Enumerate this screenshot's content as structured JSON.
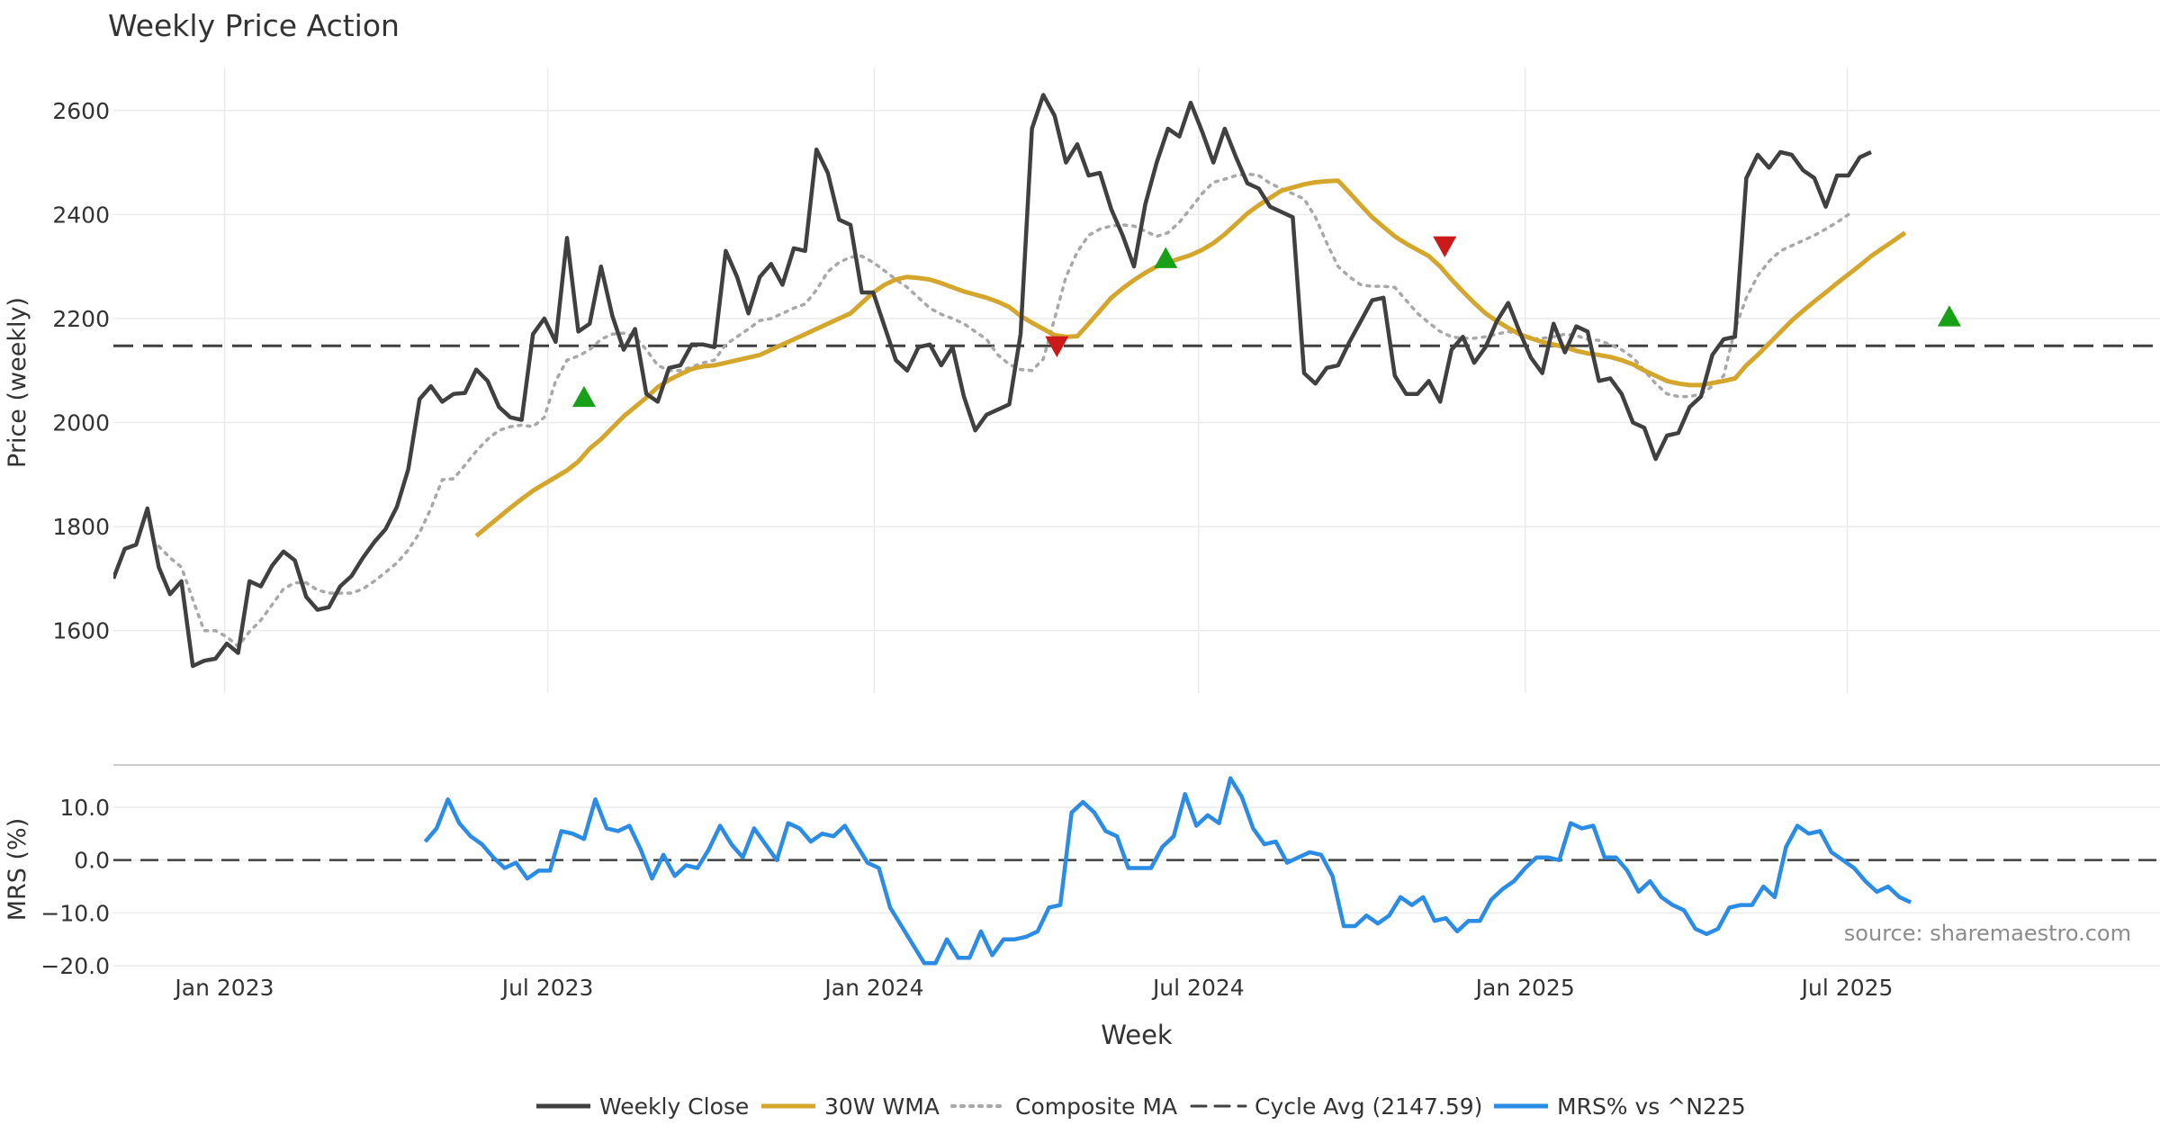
{
  "title": "Weekly Price Action",
  "source": "source: sharemaestro.com",
  "colors": {
    "close": "#404040",
    "wma": "#d4a72c",
    "composite": "#a8a8a8",
    "cycle": "#404040",
    "mrs": "#2b8ce6",
    "bull": "#18a018",
    "bear": "#cc1a1a",
    "grid": "#ebebeb",
    "text": "#333333"
  },
  "chart_data": [
    {
      "type": "line",
      "title": "Weekly Price Action",
      "xlabel": "",
      "ylabel": "Price (weekly)",
      "ylim": [
        1480,
        2700
      ],
      "yticks": [
        1600,
        1800,
        2000,
        2200,
        2400,
        2600
      ],
      "x_range_weeks": [
        0,
        181
      ],
      "date_ticks": [
        {
          "label": "Jan 2023",
          "week": 9.8
        },
        {
          "label": "Jul 2023",
          "week": 38.3
        },
        {
          "label": "Jan 2024",
          "week": 67.1
        },
        {
          "label": "Jul 2024",
          "week": 95.7
        },
        {
          "label": "Jan 2025",
          "week": 124.5
        },
        {
          "label": "Jul 2025",
          "week": 152.9
        }
      ],
      "cycle_avg": 2147.59,
      "series": [
        {
          "name": "Weekly Close",
          "start_week": 0,
          "values": [
            1700,
            1757,
            1765,
            1835,
            1722,
            1670,
            1695,
            1532,
            1542,
            1546,
            1575,
            1557,
            1695,
            1685,
            1725,
            1752,
            1735,
            1665,
            1640,
            1645,
            1685,
            1705,
            1740,
            1770,
            1795,
            1838,
            1910,
            2045,
            2070,
            2040,
            2055,
            2057,
            2102,
            2080,
            2030,
            2010,
            2005,
            2170,
            2200,
            2155,
            2355,
            2175,
            2190,
            2300,
            2205,
            2140,
            2180,
            2055,
            2040,
            2105,
            2110,
            2150,
            2150,
            2145,
            2330,
            2280,
            2210,
            2280,
            2305,
            2265,
            2335,
            2330,
            2525,
            2480,
            2390,
            2380,
            2250,
            2250,
            2185,
            2120,
            2100,
            2145,
            2150,
            2110,
            2145,
            2050,
            1985,
            2015,
            2025,
            2035,
            2170,
            2565,
            2630,
            2590,
            2500,
            2535,
            2475,
            2480,
            2410,
            2360,
            2300,
            2420,
            2500,
            2565,
            2550,
            2615,
            2560,
            2500,
            2565,
            2510,
            2460,
            2450,
            2415,
            2405,
            2395,
            2095,
            2075,
            2105,
            2110,
            2155,
            2195,
            2235,
            2240,
            2090,
            2055,
            2055,
            2080,
            2040,
            2140,
            2165,
            2115,
            2145,
            2195,
            2230,
            2175,
            2125,
            2095,
            2190,
            2135,
            2185,
            2175,
            2080,
            2085,
            2055,
            2000,
            1990,
            1930,
            1975,
            1980,
            2030,
            2050,
            2130,
            2160,
            2165,
            2470,
            2515,
            2490,
            2520,
            2515,
            2485,
            2470,
            2415,
            2475,
            2475,
            2510,
            2520
          ]
        },
        {
          "name": "30W WMA",
          "start_week": 32,
          "values": [
            1782,
            1800,
            1818,
            1836,
            1853,
            1869,
            1882,
            1895,
            1908,
            1925,
            1950,
            1968,
            1990,
            2012,
            2030,
            2048,
            2068,
            2082,
            2093,
            2103,
            2108,
            2110,
            2115,
            2120,
            2125,
            2130,
            2140,
            2150,
            2160,
            2170,
            2180,
            2190,
            2200,
            2210,
            2230,
            2250,
            2265,
            2275,
            2280,
            2278,
            2275,
            2268,
            2260,
            2252,
            2246,
            2240,
            2232,
            2222,
            2205,
            2192,
            2180,
            2168,
            2165,
            2166,
            2190,
            2215,
            2240,
            2258,
            2274,
            2288,
            2300,
            2308,
            2315,
            2322,
            2332,
            2345,
            2362,
            2382,
            2402,
            2418,
            2432,
            2446,
            2452,
            2458,
            2462,
            2464,
            2465,
            2442,
            2418,
            2395,
            2376,
            2358,
            2344,
            2332,
            2320,
            2300,
            2275,
            2252,
            2230,
            2210,
            2195,
            2182,
            2170,
            2162,
            2155,
            2150,
            2145,
            2138,
            2133,
            2130,
            2126,
            2120,
            2112,
            2100,
            2090,
            2080,
            2075,
            2072,
            2072,
            2076,
            2080,
            2085,
            2110,
            2130,
            2152,
            2174,
            2196,
            2215,
            2233,
            2250,
            2268,
            2285,
            2302,
            2320,
            2335,
            2350,
            2365
          ]
        },
        {
          "name": "Composite MA",
          "start_week": 4,
          "values": [
            1762,
            1740,
            1722,
            1660,
            1600,
            1600,
            1588,
            1570,
            1598,
            1620,
            1650,
            1680,
            1692,
            1692,
            1678,
            1672,
            1672,
            1672,
            1680,
            1695,
            1712,
            1730,
            1755,
            1788,
            1835,
            1890,
            1892,
            1918,
            1945,
            1968,
            1985,
            1992,
            1995,
            1992,
            2010,
            2080,
            2120,
            2128,
            2140,
            2160,
            2170,
            2172,
            2165,
            2140,
            2110,
            2100,
            2100,
            2107,
            2115,
            2120,
            2150,
            2165,
            2180,
            2196,
            2200,
            2210,
            2220,
            2228,
            2255,
            2290,
            2308,
            2318,
            2320,
            2308,
            2292,
            2275,
            2260,
            2240,
            2220,
            2208,
            2200,
            2190,
            2175,
            2160,
            2130,
            2112,
            2102,
            2100,
            2122,
            2200,
            2280,
            2328,
            2360,
            2372,
            2378,
            2380,
            2378,
            2368,
            2358,
            2365,
            2385,
            2412,
            2440,
            2462,
            2468,
            2475,
            2478,
            2475,
            2460,
            2450,
            2440,
            2430,
            2395,
            2345,
            2300,
            2280,
            2265,
            2262,
            2262,
            2260,
            2235,
            2210,
            2192,
            2175,
            2165,
            2162,
            2162,
            2165,
            2170,
            2175,
            2170,
            2160,
            2162,
            2165,
            2170,
            2167,
            2160,
            2158,
            2150,
            2140,
            2125,
            2100,
            2075,
            2055,
            2050,
            2050,
            2055,
            2070,
            2090,
            2180,
            2240,
            2282,
            2310,
            2330,
            2340,
            2350,
            2360,
            2372,
            2385,
            2400
          ]
        }
      ],
      "markers": [
        {
          "kind": "bull",
          "week": 41.5,
          "value": 2048
        },
        {
          "kind": "bear",
          "week": 83.2,
          "value": 2148
        },
        {
          "kind": "bull",
          "week": 92.8,
          "value": 2315
        },
        {
          "kind": "bear",
          "week": 117.4,
          "value": 2340
        },
        {
          "kind": "bull",
          "week": 161.9,
          "value": 2203
        }
      ]
    },
    {
      "type": "line",
      "title": "",
      "xlabel": "Week",
      "ylabel": "MRS (%)",
      "ylim": [
        -20.5,
        18
      ],
      "yticks": [
        -20.0,
        -10.0,
        0.0,
        10.0
      ],
      "ytick_labels": [
        "−20.0",
        "−10.0",
        "0.0",
        "10.0"
      ],
      "zero_line": 0,
      "series": [
        {
          "name": "MRS% vs ^N225",
          "start_week": 27.5,
          "values": [
            3.5,
            6,
            11.5,
            7,
            4.5,
            3,
            0.5,
            -1.5,
            -0.5,
            -3.5,
            -2,
            -2,
            5.5,
            5,
            4,
            11.5,
            6,
            5.5,
            6.5,
            2,
            -3.5,
            1,
            -3,
            -1,
            -1.5,
            2,
            6.5,
            3,
            0.5,
            6,
            3,
            0,
            7,
            6,
            3.5,
            5,
            4.5,
            6.5,
            3,
            -0.5,
            -1.5,
            -9,
            -12.5,
            -16,
            -19.5,
            -19.5,
            -15,
            -18.5,
            -18.5,
            -13.5,
            -18,
            -15,
            -15,
            -14.5,
            -13.5,
            -9,
            -8.5,
            9,
            11,
            9,
            5.5,
            4.5,
            -1.5,
            -1.5,
            -1.5,
            2.5,
            4.5,
            12.5,
            6.5,
            8.5,
            7,
            15.5,
            12,
            6,
            3,
            3.5,
            -0.5,
            0.5,
            1.5,
            1,
            -3,
            -12.5,
            -12.5,
            -10.5,
            -12,
            -10.5,
            -7,
            -8.5,
            -7,
            -11.5,
            -11,
            -13.5,
            -11.5,
            -11.5,
            -7.5,
            -5.5,
            -4,
            -1.5,
            0.5,
            0.5,
            0,
            7,
            6,
            6.5,
            0.5,
            0.5,
            -2,
            -6,
            -4,
            -7,
            -8.5,
            -9.5,
            -13,
            -14,
            -13,
            -9,
            -8.5,
            -8.5,
            -5,
            -7,
            2.5,
            6.5,
            5,
            5.5,
            1.5,
            0,
            -1.5,
            -4,
            -6,
            -5,
            -7,
            -8
          ]
        }
      ]
    }
  ],
  "legend": [
    {
      "label": "Weekly Close",
      "style": "solid-dark"
    },
    {
      "label": "30W WMA",
      "style": "solid-gold"
    },
    {
      "label": "Composite MA",
      "style": "dotted-grey"
    },
    {
      "label": "Cycle Avg (2147.59)",
      "style": "dashed-dark"
    },
    {
      "label": "MRS% vs ^N225",
      "style": "solid-blue"
    }
  ]
}
